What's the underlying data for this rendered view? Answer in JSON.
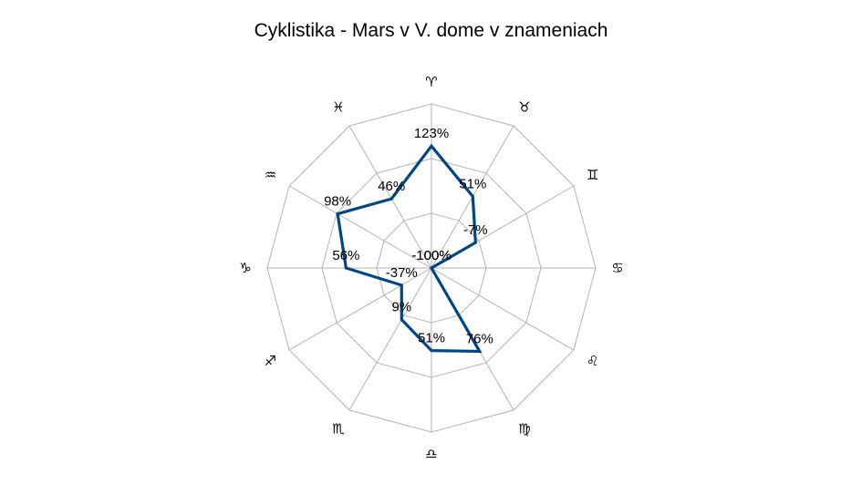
{
  "chart_data": {
    "type": "radar",
    "title": "Cyklistika - Mars v V. dome v znameniach",
    "categories": [
      "♈",
      "♓",
      "♒",
      "♑",
      "♐",
      "♏",
      "♎",
      "♍",
      "♌",
      "♋",
      "♊",
      "♉"
    ],
    "series": [
      {
        "values": [
          123,
          46,
          98,
          56,
          -37,
          9,
          51,
          76,
          -100,
          -100,
          -7,
          51
        ],
        "labels": [
          "123%",
          "46%",
          "98%",
          "56%",
          "-37%",
          "9%",
          "51%",
          "76%",
          "-100%",
          "-100%",
          "-7%",
          "51%"
        ],
        "color": "#004586"
      }
    ],
    "rlim": [
      -100,
      200
    ],
    "grid": true,
    "legend": "none"
  }
}
